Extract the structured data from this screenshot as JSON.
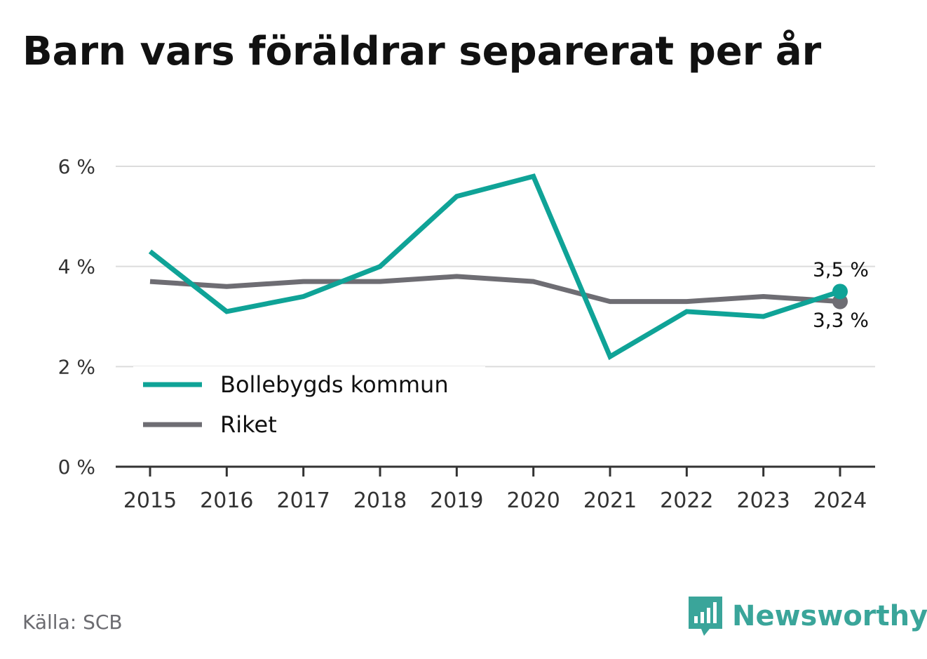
{
  "title": "Barn vars föräldrar separerat per år",
  "source": "Källa: SCB",
  "brand": {
    "name": "Newsworthy",
    "icon": "bar-chart-speech-bubble-icon"
  },
  "chart_data": {
    "type": "line",
    "title": "Barn vars föräldrar separerat per år",
    "x": [
      "2015",
      "2016",
      "2017",
      "2018",
      "2019",
      "2020",
      "2021",
      "2022",
      "2023",
      "2024"
    ],
    "ylim": [
      0,
      6
    ],
    "yticks": [
      0,
      2,
      4,
      6
    ],
    "ytick_labels": [
      "0 %",
      "2 %",
      "4 %",
      "6 %"
    ],
    "grid": true,
    "legend_position": "bottom-left",
    "series": [
      {
        "name": "Bollebygds kommun",
        "color": "#0fa397",
        "values": [
          4.3,
          3.1,
          3.4,
          4.0,
          5.4,
          5.8,
          2.2,
          3.1,
          3.0,
          3.5
        ],
        "end_label": "3,5 %"
      },
      {
        "name": "Riket",
        "color": "#6e6d73",
        "values": [
          3.7,
          3.6,
          3.7,
          3.7,
          3.8,
          3.7,
          3.3,
          3.3,
          3.4,
          3.3
        ],
        "end_label": "3,3 %"
      }
    ]
  }
}
